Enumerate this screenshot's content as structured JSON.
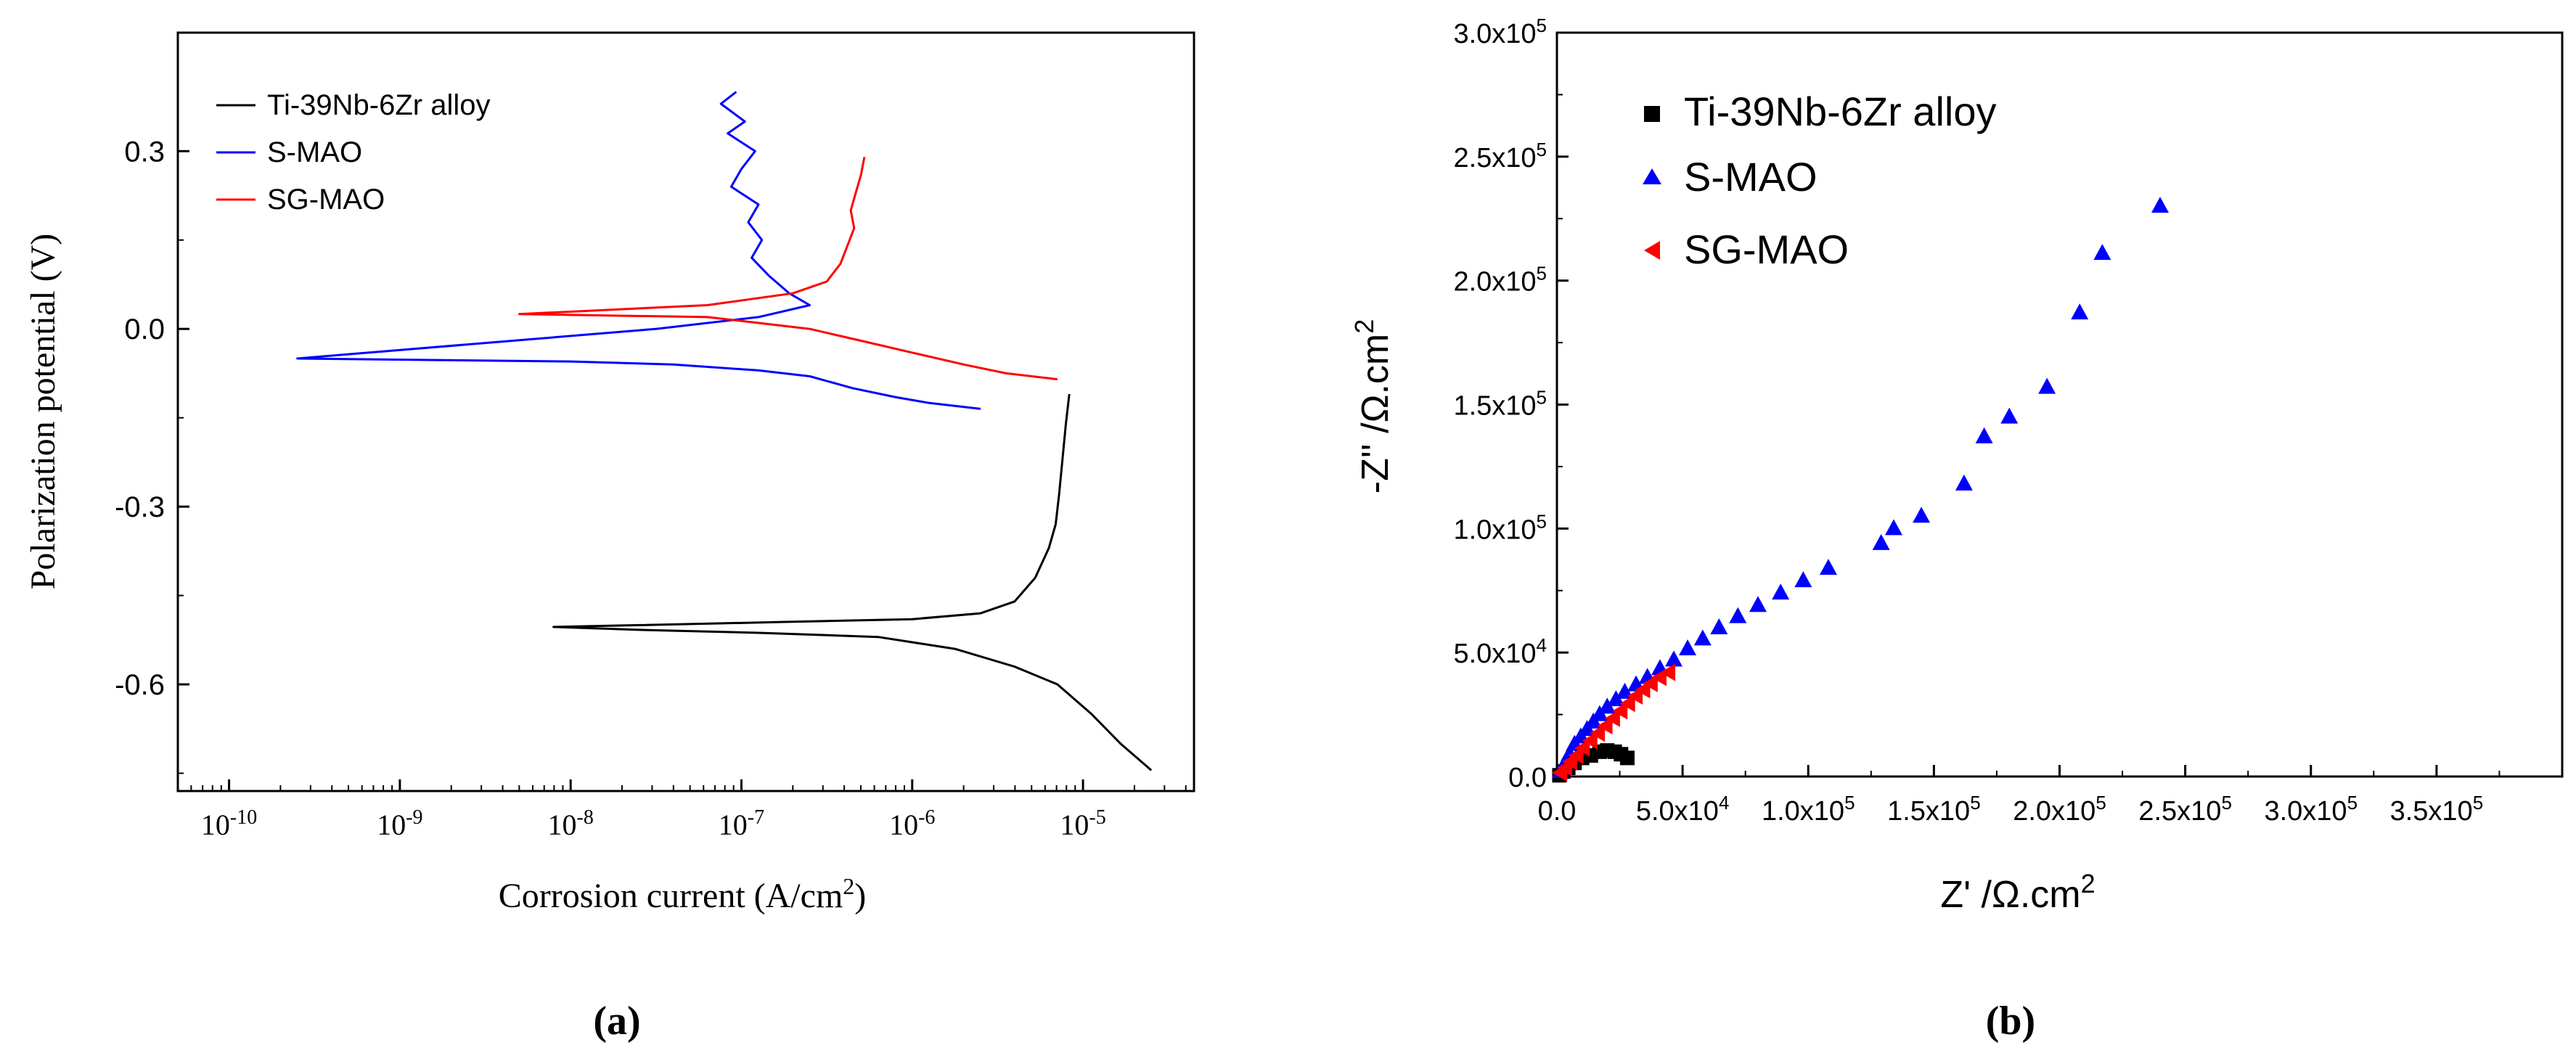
{
  "panels": [
    {
      "caption": "(a)",
      "chart_data": {
        "type": "line",
        "title": "",
        "xlabel": "Corrosion current (A/cm",
        "xlabel_sup": "2",
        "xlabel_end": ")",
        "ylabel": "Polarization potential (V)",
        "xscale": "log",
        "xlim_log10": [
          -10.3,
          -4.35
        ],
        "ylim": [
          -0.78,
          0.5
        ],
        "x_ticks": [
          {
            "base": "10",
            "exp": "-10",
            "log10": -10
          },
          {
            "base": "10",
            "exp": "-9",
            "log10": -9
          },
          {
            "base": "10",
            "exp": "-8",
            "log10": -8
          },
          {
            "base": "10",
            "exp": "-7",
            "log10": -7
          },
          {
            "base": "10",
            "exp": "-6",
            "log10": -6
          },
          {
            "base": "10",
            "exp": "-5",
            "log10": -5
          }
        ],
        "y_ticks": [
          {
            "label": "0.3",
            "value": 0.3
          },
          {
            "label": "0.0",
            "value": 0.0
          },
          {
            "label": "-0.3",
            "value": -0.3
          },
          {
            "label": "-0.6",
            "value": -0.6
          }
        ],
        "legend_position": "top-left",
        "series": [
          {
            "name": "Ti-39Nb-6Zr alloy",
            "color": "#000000",
            "points": [
              [
                -5.08,
                -0.11
              ],
              [
                -5.1,
                -0.16
              ],
              [
                -5.12,
                -0.22
              ],
              [
                -5.14,
                -0.28
              ],
              [
                -5.16,
                -0.33
              ],
              [
                -5.2,
                -0.37
              ],
              [
                -5.28,
                -0.42
              ],
              [
                -5.4,
                -0.46
              ],
              [
                -5.6,
                -0.48
              ],
              [
                -6.0,
                -0.49
              ],
              [
                -6.8,
                -0.495
              ],
              [
                -7.6,
                -0.5
              ],
              [
                -8.1,
                -0.503
              ],
              [
                -7.6,
                -0.508
              ],
              [
                -6.9,
                -0.513
              ],
              [
                -6.2,
                -0.52
              ],
              [
                -5.75,
                -0.54
              ],
              [
                -5.4,
                -0.57
              ],
              [
                -5.15,
                -0.6
              ],
              [
                -4.95,
                -0.65
              ],
              [
                -4.78,
                -0.7
              ],
              [
                -4.6,
                -0.745
              ]
            ]
          },
          {
            "name": "S-MAO",
            "color": "#0000ff",
            "points": [
              [
                -7.03,
                0.4
              ],
              [
                -7.12,
                0.38
              ],
              [
                -6.98,
                0.35
              ],
              [
                -7.08,
                0.33
              ],
              [
                -6.92,
                0.3
              ],
              [
                -7.0,
                0.27
              ],
              [
                -7.06,
                0.24
              ],
              [
                -6.9,
                0.21
              ],
              [
                -6.96,
                0.18
              ],
              [
                -6.88,
                0.15
              ],
              [
                -6.94,
                0.12
              ],
              [
                -6.84,
                0.09
              ],
              [
                -6.72,
                0.06
              ],
              [
                -6.6,
                0.04
              ],
              [
                -6.9,
                0.02
              ],
              [
                -7.5,
                0.0
              ],
              [
                -9.6,
                -0.05
              ],
              [
                -8.0,
                -0.055
              ],
              [
                -7.4,
                -0.06
              ],
              [
                -6.9,
                -0.07
              ],
              [
                -6.6,
                -0.08
              ],
              [
                -6.35,
                -0.1
              ],
              [
                -6.1,
                -0.115
              ],
              [
                -5.9,
                -0.125
              ],
              [
                -5.6,
                -0.135
              ]
            ]
          },
          {
            "name": "SG-MAO",
            "color": "#ff0000",
            "points": [
              [
                -6.28,
                0.29
              ],
              [
                -6.3,
                0.26
              ],
              [
                -6.33,
                0.23
              ],
              [
                -6.36,
                0.2
              ],
              [
                -6.34,
                0.17
              ],
              [
                -6.38,
                0.14
              ],
              [
                -6.42,
                0.11
              ],
              [
                -6.5,
                0.08
              ],
              [
                -6.7,
                0.06
              ],
              [
                -7.2,
                0.04
              ],
              [
                -8.3,
                0.025
              ],
              [
                -7.2,
                0.02
              ],
              [
                -6.9,
                0.01
              ],
              [
                -6.6,
                0.0
              ],
              [
                -6.3,
                -0.02
              ],
              [
                -6.0,
                -0.04
              ],
              [
                -5.7,
                -0.06
              ],
              [
                -5.45,
                -0.075
              ],
              [
                -5.15,
                -0.085
              ]
            ]
          }
        ]
      }
    },
    {
      "caption": "(b)",
      "chart_data": {
        "type": "scatter",
        "title": "",
        "xlabel": "Z' /Ω.cm",
        "xlabel_sup": "2",
        "ylabel": "-Z'' /Ω.cm",
        "ylabel_sup": "2",
        "xlim": [
          0,
          400000
        ],
        "ylim": [
          0,
          300000
        ],
        "x_ticks": [
          {
            "mant": "0.0",
            "exp": "",
            "value": 0
          },
          {
            "mant": "5.0x10",
            "exp": "4",
            "value": 50000
          },
          {
            "mant": "1.0x10",
            "exp": "5",
            "value": 100000
          },
          {
            "mant": "1.5x10",
            "exp": "5",
            "value": 150000
          },
          {
            "mant": "2.0x10",
            "exp": "5",
            "value": 200000
          },
          {
            "mant": "2.5x10",
            "exp": "5",
            "value": 250000
          },
          {
            "mant": "3.0x10",
            "exp": "5",
            "value": 300000
          },
          {
            "mant": "3.5x10",
            "exp": "5",
            "value": 350000
          }
        ],
        "y_ticks": [
          {
            "mant": "0.0",
            "exp": "",
            "value": 0
          },
          {
            "mant": "5.0x10",
            "exp": "4",
            "value": 50000
          },
          {
            "mant": "1.0x10",
            "exp": "5",
            "value": 100000
          },
          {
            "mant": "1.5x10",
            "exp": "5",
            "value": 150000
          },
          {
            "mant": "2.0x10",
            "exp": "5",
            "value": 200000
          },
          {
            "mant": "2.5x10",
            "exp": "5",
            "value": 250000
          },
          {
            "mant": "3.0x10",
            "exp": "5",
            "value": 300000
          }
        ],
        "legend_position": "top-left",
        "series": [
          {
            "name": "Ti-39Nb-6Zr alloy",
            "marker": "square",
            "color": "#000000",
            "points": [
              [
                1000,
                500
              ],
              [
                2500,
                2000
              ],
              [
                4500,
                3500
              ],
              [
                7000,
                5500
              ],
              [
                10000,
                7500
              ],
              [
                13500,
                8500
              ],
              [
                17000,
                10000
              ],
              [
                20000,
                10500
              ],
              [
                23000,
                10000
              ],
              [
                25500,
                9000
              ],
              [
                28000,
                7500
              ]
            ]
          },
          {
            "name": "S-MAO",
            "marker": "triangle",
            "color": "#0000ff",
            "points": [
              [
                1500,
                2000
              ],
              [
                3000,
                5000
              ],
              [
                5000,
                9000
              ],
              [
                7000,
                13000
              ],
              [
                9500,
                16000
              ],
              [
                12000,
                19000
              ],
              [
                14500,
                22000
              ],
              [
                17000,
                25000
              ],
              [
                20000,
                28000
              ],
              [
                23500,
                31000
              ],
              [
                27000,
                34000
              ],
              [
                31500,
                37000
              ],
              [
                36000,
                40000
              ],
              [
                41000,
                43500
              ],
              [
                46500,
                47000
              ],
              [
                52000,
                51500
              ],
              [
                58000,
                55500
              ],
              [
                64500,
                60000
              ],
              [
                72000,
                64500
              ],
              [
                80000,
                69000
              ],
              [
                89000,
                74000
              ],
              [
                98000,
                79000
              ],
              [
                108000,
                84000
              ],
              [
                129000,
                94000
              ],
              [
                134000,
                100000
              ],
              [
                145000,
                105000
              ],
              [
                162000,
                118000
              ],
              [
                170000,
                137000
              ],
              [
                180000,
                145000
              ],
              [
                195000,
                157000
              ],
              [
                208000,
                187000
              ],
              [
                217000,
                211000
              ],
              [
                240000,
                230000
              ]
            ]
          },
          {
            "name": "SG-MAO",
            "marker": "triangle-left",
            "color": "#ff0000",
            "points": [
              [
                1500,
                1500
              ],
              [
                3500,
                3500
              ],
              [
                5500,
                6000
              ],
              [
                8000,
                8500
              ],
              [
                10500,
                11500
              ],
              [
                13500,
                14500
              ],
              [
                16500,
                17500
              ],
              [
                19500,
                20500
              ],
              [
                22500,
                23500
              ],
              [
                25500,
                26500
              ],
              [
                28500,
                29500
              ],
              [
                31500,
                32500
              ],
              [
                34500,
                35000
              ],
              [
                37500,
                37500
              ],
              [
                41000,
                40000
              ],
              [
                44500,
                42000
              ]
            ]
          }
        ]
      }
    }
  ]
}
